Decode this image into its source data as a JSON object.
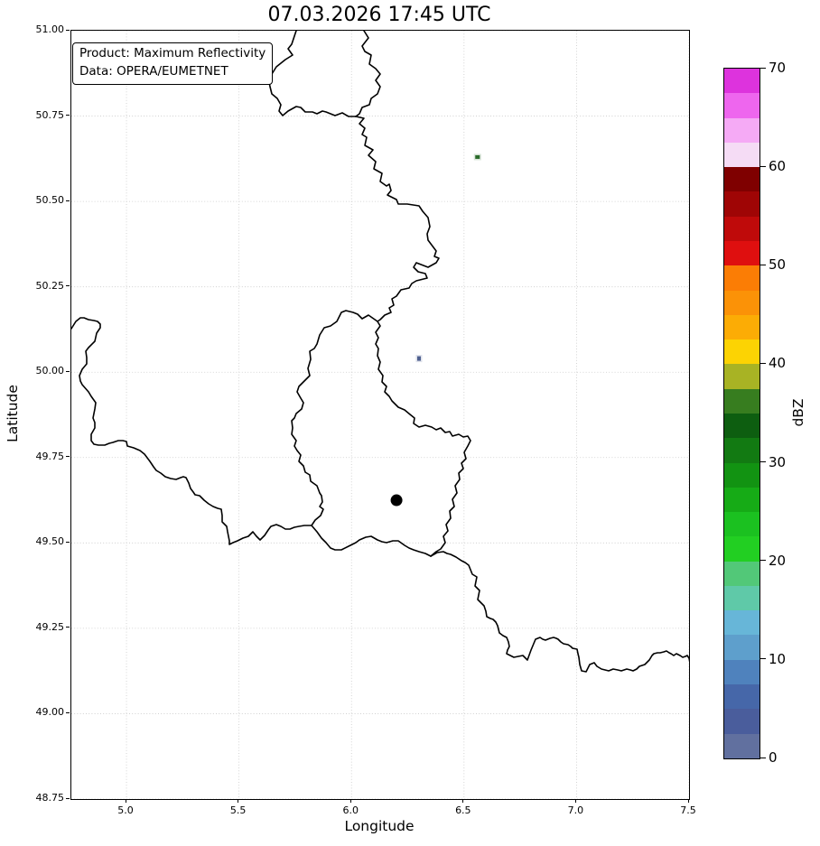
{
  "title": "07.03.2026 17:45 UTC",
  "annotation_box": {
    "line1": "Product: Maximum Reflectivity",
    "line2": "Data: OPERA/EUMETNET"
  },
  "axes": {
    "xlabel": "Longitude",
    "ylabel": "Latitude",
    "x_range": [
      4.755,
      7.5
    ],
    "y_range": [
      48.75,
      51.0
    ],
    "x_tick_values": [
      5.0,
      5.5,
      6.0,
      6.5,
      7.0,
      7.5
    ],
    "x_tick_labels": [
      "5.0",
      "5.5",
      "6.0",
      "6.5",
      "7.0",
      "7.5"
    ],
    "y_tick_values": [
      51.0,
      50.75,
      50.5,
      50.25,
      50.0,
      49.75,
      49.5,
      49.25,
      49.0,
      48.75
    ],
    "y_tick_labels": [
      "51.00",
      "50.75",
      "50.50",
      "50.25",
      "50.00",
      "49.75",
      "49.50",
      "49.25",
      "49.00",
      "48.75"
    ],
    "grid": true
  },
  "colorbar": {
    "label": "dBZ",
    "vmin": 0,
    "vmax": 70,
    "segment_step": 2.5,
    "tick_values": [
      70,
      60,
      50,
      40,
      30,
      20,
      10,
      0
    ],
    "tick_labels": [
      "70",
      "60",
      "50",
      "40",
      "30",
      "20",
      "10",
      "0"
    ],
    "colors_low_to_high": [
      "#61709f",
      "#4a5d9c",
      "#4667a9",
      "#4f82bd",
      "#5e9fcc",
      "#67b6d8",
      "#5fc9a8",
      "#52c878",
      "#22cf22",
      "#1bc120",
      "#16ab16",
      "#129312",
      "#127a12",
      "#0d5e10",
      "#377d1f",
      "#a8b324",
      "#fcd303",
      "#fcac05",
      "#fb9207",
      "#fb7d05",
      "#df0f0f",
      "#bf0a0a",
      "#9f0505",
      "#7f0000",
      "#f5dcf5",
      "#f5aaf5",
      "#ee66ee",
      "#dd33dd"
    ]
  },
  "chart_data": {
    "type": "heatmap",
    "title": "07.03.2026 17:45 UTC",
    "product": "Maximum Reflectivity",
    "data_source": "OPERA/EUMETNET",
    "xlabel": "Longitude",
    "ylabel": "Latitude",
    "xlim": [
      4.755,
      7.5
    ],
    "ylim": [
      48.75,
      51.0
    ],
    "grid": true,
    "colorbar_label": "dBZ",
    "colorbar_range": [
      0,
      70
    ],
    "annotation_position": "upper left",
    "echo_points": [
      {
        "lon": 6.56,
        "lat": 50.63,
        "dbz": 35,
        "color": "#2a6b2a",
        "w": 5,
        "h": 4
      },
      {
        "lon": 6.3,
        "lat": 50.04,
        "dbz": 4,
        "color": "#4f608f",
        "w": 4,
        "h": 5
      }
    ],
    "station_marker": {
      "lon": 6.2,
      "lat": 49.625,
      "shape": "filled-circle",
      "color": "#000000",
      "diameter": 13
    }
  }
}
